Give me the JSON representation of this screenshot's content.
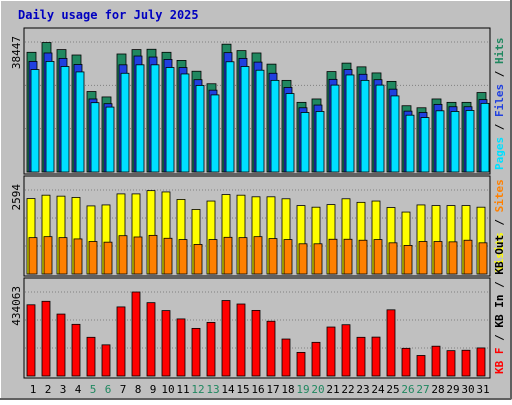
{
  "chart_data": [
    {
      "type": "bar",
      "title": "Daily usage for July 2025",
      "categories": [
        "1",
        "2",
        "3",
        "4",
        "5",
        "6",
        "7",
        "8",
        "9",
        "10",
        "11",
        "12",
        "13",
        "14",
        "15",
        "16",
        "17",
        "18",
        "19",
        "20",
        "21",
        "22",
        "23",
        "24",
        "25",
        "26",
        "27",
        "28",
        "29",
        "30",
        "31"
      ],
      "weekend_categories": [
        "5",
        "6",
        "12",
        "13",
        "19",
        "20",
        "26",
        "27"
      ],
      "y_tick_label": "38447",
      "ylim": [
        0,
        38447
      ],
      "axis_labels": [
        "Pages",
        "Files",
        "Hits"
      ],
      "series": [
        {
          "name": "Hits",
          "color": "#208860",
          "values": [
            35400,
            38300,
            36200,
            34600,
            23800,
            22200,
            34900,
            36200,
            36300,
            35400,
            33000,
            29800,
            26100,
            37800,
            35900,
            35200,
            31900,
            27100,
            20600,
            21600,
            29700,
            32200,
            31100,
            29300,
            26800,
            19600,
            19000,
            21600,
            20600,
            20600,
            23500
          ]
        },
        {
          "name": "Files",
          "color": "#2040e0",
          "values": [
            32700,
            35200,
            33600,
            31800,
            21600,
            20200,
            31700,
            34300,
            34000,
            33300,
            30900,
            27300,
            24200,
            35300,
            33600,
            32500,
            29200,
            25000,
            19000,
            19800,
            27400,
            30300,
            28900,
            27300,
            24500,
            18000,
            17600,
            20000,
            19300,
            19300,
            21400
          ]
        },
        {
          "name": "Pages",
          "color": "#00e0ff",
          "values": [
            30300,
            32700,
            31200,
            29600,
            20500,
            19200,
            29200,
            31700,
            31700,
            30900,
            29000,
            25600,
            22800,
            32600,
            31200,
            30100,
            27100,
            23200,
            17600,
            17900,
            25700,
            28700,
            27100,
            25700,
            22500,
            16800,
            16100,
            18100,
            17900,
            18200,
            20300
          ]
        }
      ]
    },
    {
      "type": "bar",
      "categories": [
        "1",
        "2",
        "3",
        "4",
        "5",
        "6",
        "7",
        "8",
        "9",
        "10",
        "11",
        "12",
        "13",
        "14",
        "15",
        "16",
        "17",
        "18",
        "19",
        "20",
        "21",
        "22",
        "23",
        "24",
        "25",
        "26",
        "27",
        "28",
        "29",
        "30",
        "31"
      ],
      "y_tick_label": "2594",
      "ylim": [
        0,
        2594
      ],
      "axis_labels": [
        "Visits",
        "Sites"
      ],
      "series": [
        {
          "name": "Visits",
          "color": "#ffff00",
          "values": [
            2330,
            2434,
            2404,
            2364,
            2103,
            2133,
            2474,
            2474,
            2574,
            2534,
            2303,
            1993,
            2253,
            2454,
            2434,
            2384,
            2384,
            2323,
            2113,
            2063,
            2143,
            2323,
            2213,
            2253,
            2053,
            1913,
            2133,
            2113,
            2113,
            2113,
            2063
          ]
        },
        {
          "name": "Sites",
          "color": "#ff8000",
          "values": [
            1123,
            1153,
            1123,
            1083,
            1003,
            983,
            1183,
            1143,
            1193,
            1103,
            1063,
            913,
            1063,
            1133,
            1123,
            1153,
            1093,
            1063,
            933,
            933,
            1073,
            1073,
            1043,
            1063,
            963,
            883,
            1003,
            1003,
            993,
            1043,
            963
          ]
        }
      ]
    },
    {
      "type": "bar",
      "categories": [
        "1",
        "2",
        "3",
        "4",
        "5",
        "6",
        "7",
        "8",
        "9",
        "10",
        "11",
        "12",
        "13",
        "14",
        "15",
        "16",
        "17",
        "18",
        "19",
        "20",
        "21",
        "22",
        "23",
        "24",
        "25",
        "26",
        "27",
        "28",
        "29",
        "30",
        "31"
      ],
      "y_tick_label": "434063",
      "ylim": [
        0,
        434063
      ],
      "axis_labels": [
        "KB F",
        "KB In",
        "KB Out"
      ],
      "series": [
        {
          "name": "KB F",
          "color": "#ff0000",
          "values": [
            368000,
            386000,
            320000,
            267000,
            200000,
            161000,
            357000,
            434000,
            379000,
            338000,
            295000,
            246000,
            277000,
            390000,
            372000,
            339000,
            283000,
            191000,
            122000,
            174000,
            253000,
            265000,
            200000,
            201000,
            342000,
            143000,
            106000,
            154000,
            131000,
            133000,
            145000
          ]
        }
      ]
    }
  ]
}
